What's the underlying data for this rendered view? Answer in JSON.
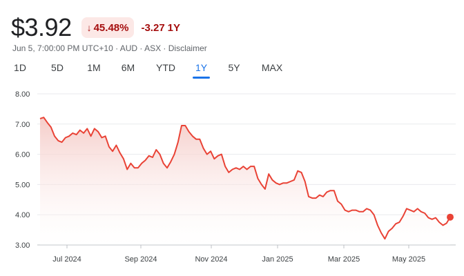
{
  "quote": {
    "price": "$3.92",
    "change_pct": "45.48%",
    "change_abs": "-3.27",
    "period": "1Y",
    "meta": "Jun 5, 7:00:00 PM UTC+10 · AUD · ASX · Disclaimer"
  },
  "icons": {
    "change_direction": "arrow-down-icon"
  },
  "tabs": [
    "1D",
    "5D",
    "1M",
    "6M",
    "YTD",
    "1Y",
    "5Y",
    "MAX"
  ],
  "active_tab": "1Y",
  "colors": {
    "line": "#e94235",
    "fill_top": "#f4c7c3",
    "down_text": "#a50e0e",
    "down_bg": "#fce8e6",
    "active_tab": "#1a73e8"
  },
  "chart_data": {
    "type": "area",
    "ylim": [
      3.0,
      8.0
    ],
    "y_ticks": [
      "8.00",
      "7.00",
      "6.00",
      "5.00",
      "4.00",
      "3.00"
    ],
    "x_ticks": [
      "Jul 2024",
      "Sep 2024",
      "Nov 2024",
      "Jan 2025",
      "Mar 2025",
      "May 2025"
    ],
    "grid": true,
    "series": [
      {
        "values": [
          7.18,
          7.22,
          7.05,
          6.9,
          6.6,
          6.45,
          6.4,
          6.55,
          6.6,
          6.7,
          6.65,
          6.8,
          6.7,
          6.85,
          6.6,
          6.85,
          6.75,
          6.55,
          6.6,
          6.25,
          6.1,
          6.3,
          6.05,
          5.85,
          5.5,
          5.7,
          5.55,
          5.55,
          5.7,
          5.8,
          5.95,
          5.9,
          6.15,
          6.0,
          5.7,
          5.55,
          5.75,
          6.0,
          6.4,
          6.95,
          6.95,
          6.75,
          6.6,
          6.5,
          6.5,
          6.2,
          6.0,
          6.1,
          5.85,
          5.95,
          6.0,
          5.6,
          5.4,
          5.5,
          5.55,
          5.5,
          5.6,
          5.5,
          5.6,
          5.6,
          5.2,
          5.0,
          4.85,
          5.35,
          5.15,
          5.05,
          5.0,
          5.05,
          5.05,
          5.1,
          5.15,
          5.45,
          5.4,
          5.1,
          4.6,
          4.55,
          4.55,
          4.65,
          4.6,
          4.75,
          4.8,
          4.8,
          4.45,
          4.35,
          4.15,
          4.1,
          4.15,
          4.15,
          4.1,
          4.1,
          4.2,
          4.15,
          4.0,
          3.65,
          3.4,
          3.2,
          3.45,
          3.55,
          3.7,
          3.75,
          3.95,
          4.2,
          4.15,
          4.1,
          4.2,
          4.1,
          4.05,
          3.9,
          3.85,
          3.9,
          3.75,
          3.65,
          3.72,
          3.92
        ]
      }
    ]
  }
}
